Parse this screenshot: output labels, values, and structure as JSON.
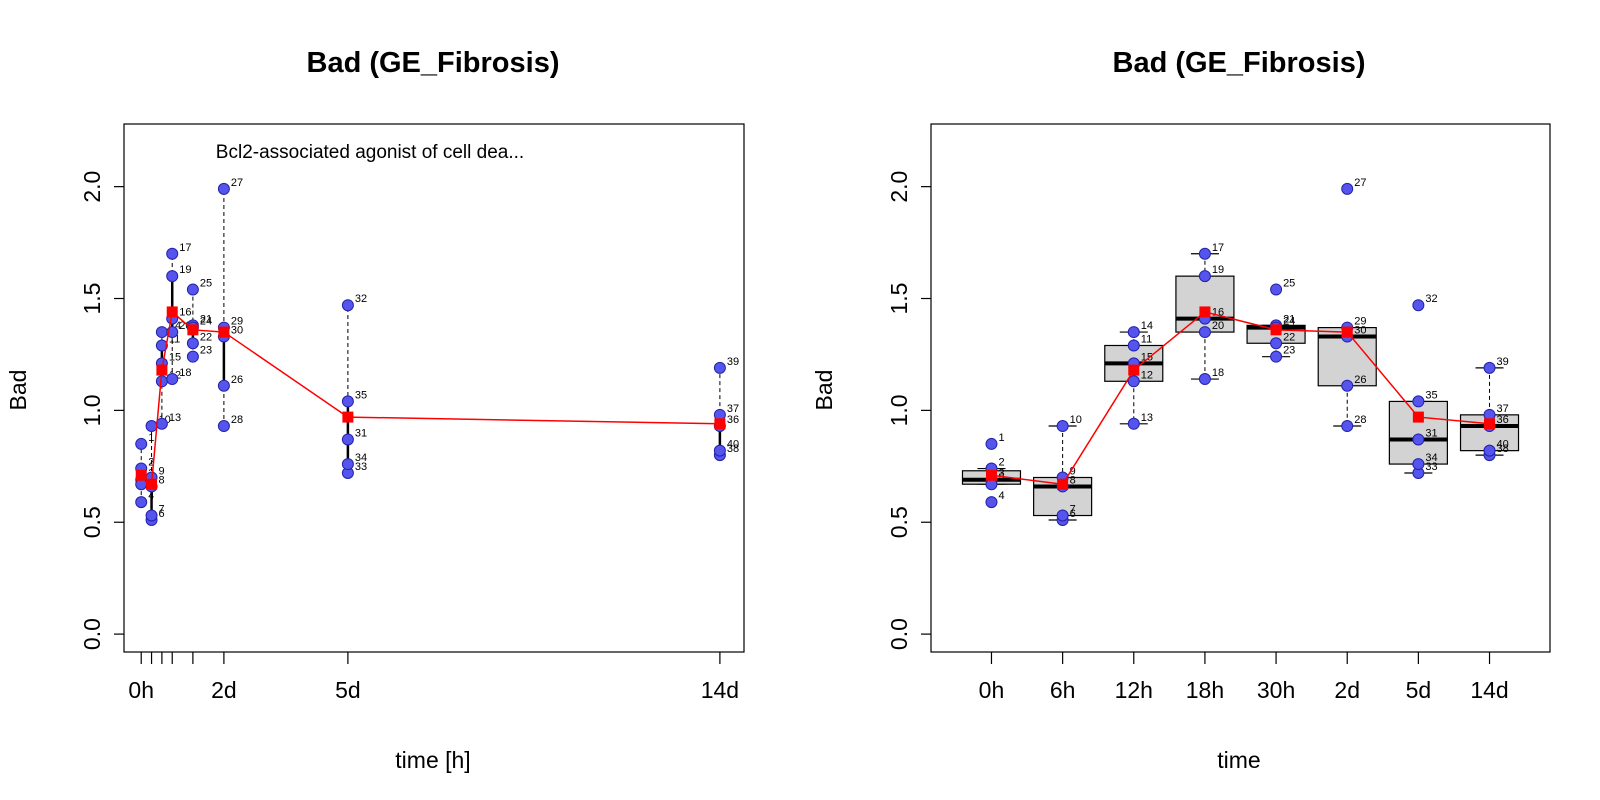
{
  "chart_data": [
    {
      "type": "scatter",
      "title": "Bad (GE_Fibrosis)",
      "subtitle": "Bcl2-associated agonist of cell dea...",
      "xlabel": "time [h]",
      "ylabel": "Bad",
      "xlim": [
        -10,
        350
      ],
      "ylim": [
        -0.08,
        2.28
      ],
      "xticks": [
        0,
        6,
        12,
        18,
        30,
        48,
        120,
        336
      ],
      "xtick_labels": [
        {
          "x": 0,
          "label": "0h"
        },
        {
          "x": 48,
          "label": "2d"
        },
        {
          "x": 120,
          "label": "5d"
        },
        {
          "x": 336,
          "label": "14d"
        }
      ],
      "yticks": [
        0.0,
        0.5,
        1.0,
        1.5,
        2.0
      ],
      "ytick_labels": [
        "0.0",
        "0.5",
        "1.0",
        "1.5",
        "2.0"
      ],
      "points": [
        {
          "id": "1",
          "x": 0,
          "y": 0.85
        },
        {
          "id": "2",
          "x": 0,
          "y": 0.74
        },
        {
          "id": "3",
          "x": 0,
          "y": 0.69
        },
        {
          "id": "4",
          "x": 0,
          "y": 0.59
        },
        {
          "id": "5",
          "x": 0,
          "y": 0.67
        },
        {
          "id": "6",
          "x": 6,
          "y": 0.51
        },
        {
          "id": "7",
          "x": 6,
          "y": 0.53
        },
        {
          "id": "8",
          "x": 6,
          "y": 0.66
        },
        {
          "id": "9",
          "x": 6,
          "y": 0.7
        },
        {
          "id": "10",
          "x": 6,
          "y": 0.93
        },
        {
          "id": "11",
          "x": 12,
          "y": 1.29
        },
        {
          "id": "12",
          "x": 12,
          "y": 1.13
        },
        {
          "id": "13",
          "x": 12,
          "y": 0.94
        },
        {
          "id": "14",
          "x": 12,
          "y": 1.35
        },
        {
          "id": "15",
          "x": 12,
          "y": 1.21
        },
        {
          "id": "16",
          "x": 18,
          "y": 1.41
        },
        {
          "id": "17",
          "x": 18,
          "y": 1.7
        },
        {
          "id": "18",
          "x": 18,
          "y": 1.14
        },
        {
          "id": "19",
          "x": 18,
          "y": 1.6
        },
        {
          "id": "20",
          "x": 18,
          "y": 1.35
        },
        {
          "id": "21",
          "x": 30,
          "y": 1.38
        },
        {
          "id": "22",
          "x": 30,
          "y": 1.3
        },
        {
          "id": "23",
          "x": 30,
          "y": 1.24
        },
        {
          "id": "24",
          "x": 30,
          "y": 1.37
        },
        {
          "id": "25",
          "x": 30,
          "y": 1.54
        },
        {
          "id": "26",
          "x": 48,
          "y": 1.11
        },
        {
          "id": "27",
          "x": 48,
          "y": 1.99
        },
        {
          "id": "28",
          "x": 48,
          "y": 0.93
        },
        {
          "id": "29",
          "x": 48,
          "y": 1.37
        },
        {
          "id": "30",
          "x": 48,
          "y": 1.33
        },
        {
          "id": "31",
          "x": 120,
          "y": 0.87
        },
        {
          "id": "32",
          "x": 120,
          "y": 1.47
        },
        {
          "id": "33",
          "x": 120,
          "y": 0.72
        },
        {
          "id": "34",
          "x": 120,
          "y": 0.76
        },
        {
          "id": "35",
          "x": 120,
          "y": 1.04
        },
        {
          "id": "36",
          "x": 336,
          "y": 0.93
        },
        {
          "id": "37",
          "x": 336,
          "y": 0.98
        },
        {
          "id": "38",
          "x": 336,
          "y": 0.8
        },
        {
          "id": "39",
          "x": 336,
          "y": 1.19
        },
        {
          "id": "40",
          "x": 336,
          "y": 0.82
        }
      ],
      "mean_line": {
        "x": [
          0,
          6,
          12,
          18,
          30,
          48,
          120,
          336
        ],
        "y": [
          0.71,
          0.67,
          1.18,
          1.44,
          1.36,
          1.35,
          0.97,
          0.94
        ]
      },
      "colors": {
        "points": "#5555ee",
        "mean": "#ff0000"
      }
    },
    {
      "type": "box",
      "title": "Bad (GE_Fibrosis)",
      "xlabel": "time",
      "ylabel": "Bad",
      "categories": [
        "0h",
        "6h",
        "12h",
        "18h",
        "30h",
        "2d",
        "5d",
        "14d"
      ],
      "ylim": [
        -0.08,
        2.28
      ],
      "yticks": [
        0.0,
        0.5,
        1.0,
        1.5,
        2.0
      ],
      "ytick_labels": [
        "0.0",
        "0.5",
        "1.0",
        "1.5",
        "2.0"
      ],
      "boxes": [
        {
          "min": 0.67,
          "q1": 0.67,
          "median": 0.69,
          "q3": 0.73,
          "max": 0.74
        },
        {
          "min": 0.51,
          "q1": 0.53,
          "median": 0.66,
          "q3": 0.7,
          "max": 0.93
        },
        {
          "min": 0.94,
          "q1": 1.13,
          "median": 1.21,
          "q3": 1.29,
          "max": 1.35
        },
        {
          "min": 1.14,
          "q1": 1.35,
          "median": 1.41,
          "q3": 1.6,
          "max": 1.7
        },
        {
          "min": 1.24,
          "q1": 1.3,
          "median": 1.37,
          "q3": 1.38,
          "max": 1.38
        },
        {
          "min": 0.93,
          "q1": 1.11,
          "median": 1.33,
          "q3": 1.37,
          "max": 1.37
        },
        {
          "min": 0.72,
          "q1": 0.76,
          "median": 0.87,
          "q3": 1.04,
          "max": 1.04
        },
        {
          "min": 0.8,
          "q1": 0.82,
          "median": 0.93,
          "q3": 0.98,
          "max": 1.19
        }
      ],
      "points": [
        {
          "id": "1",
          "cat": 0,
          "y": 0.85
        },
        {
          "id": "2",
          "cat": 0,
          "y": 0.74
        },
        {
          "id": "3",
          "cat": 0,
          "y": 0.69
        },
        {
          "id": "4",
          "cat": 0,
          "y": 0.59
        },
        {
          "id": "5",
          "cat": 0,
          "y": 0.67
        },
        {
          "id": "6",
          "cat": 1,
          "y": 0.51
        },
        {
          "id": "7",
          "cat": 1,
          "y": 0.53
        },
        {
          "id": "8",
          "cat": 1,
          "y": 0.66
        },
        {
          "id": "9",
          "cat": 1,
          "y": 0.7
        },
        {
          "id": "10",
          "cat": 1,
          "y": 0.93
        },
        {
          "id": "11",
          "cat": 2,
          "y": 1.29
        },
        {
          "id": "12",
          "cat": 2,
          "y": 1.13
        },
        {
          "id": "13",
          "cat": 2,
          "y": 0.94
        },
        {
          "id": "14",
          "cat": 2,
          "y": 1.35
        },
        {
          "id": "15",
          "cat": 2,
          "y": 1.21
        },
        {
          "id": "16",
          "cat": 3,
          "y": 1.41
        },
        {
          "id": "17",
          "cat": 3,
          "y": 1.7
        },
        {
          "id": "18",
          "cat": 3,
          "y": 1.14
        },
        {
          "id": "19",
          "cat": 3,
          "y": 1.6
        },
        {
          "id": "20",
          "cat": 3,
          "y": 1.35
        },
        {
          "id": "21",
          "cat": 4,
          "y": 1.38
        },
        {
          "id": "22",
          "cat": 4,
          "y": 1.3
        },
        {
          "id": "23",
          "cat": 4,
          "y": 1.24
        },
        {
          "id": "24",
          "cat": 4,
          "y": 1.37
        },
        {
          "id": "25",
          "cat": 4,
          "y": 1.54
        },
        {
          "id": "26",
          "cat": 5,
          "y": 1.11
        },
        {
          "id": "27",
          "cat": 5,
          "y": 1.99
        },
        {
          "id": "28",
          "cat": 5,
          "y": 0.93
        },
        {
          "id": "29",
          "cat": 5,
          "y": 1.37
        },
        {
          "id": "30",
          "cat": 5,
          "y": 1.33
        },
        {
          "id": "31",
          "cat": 6,
          "y": 0.87
        },
        {
          "id": "32",
          "cat": 6,
          "y": 1.47
        },
        {
          "id": "33",
          "cat": 6,
          "y": 0.72
        },
        {
          "id": "34",
          "cat": 6,
          "y": 0.76
        },
        {
          "id": "35",
          "cat": 6,
          "y": 1.04
        },
        {
          "id": "36",
          "cat": 7,
          "y": 0.93
        },
        {
          "id": "37",
          "cat": 7,
          "y": 0.98
        },
        {
          "id": "38",
          "cat": 7,
          "y": 0.8
        },
        {
          "id": "39",
          "cat": 7,
          "y": 1.19
        },
        {
          "id": "40",
          "cat": 7,
          "y": 0.82
        }
      ],
      "mean_line": {
        "y": [
          0.71,
          0.67,
          1.18,
          1.44,
          1.36,
          1.35,
          0.97,
          0.94
        ]
      },
      "colors": {
        "points": "#5555ee",
        "mean": "#ff0000",
        "box": "#d3d3d3"
      }
    }
  ]
}
